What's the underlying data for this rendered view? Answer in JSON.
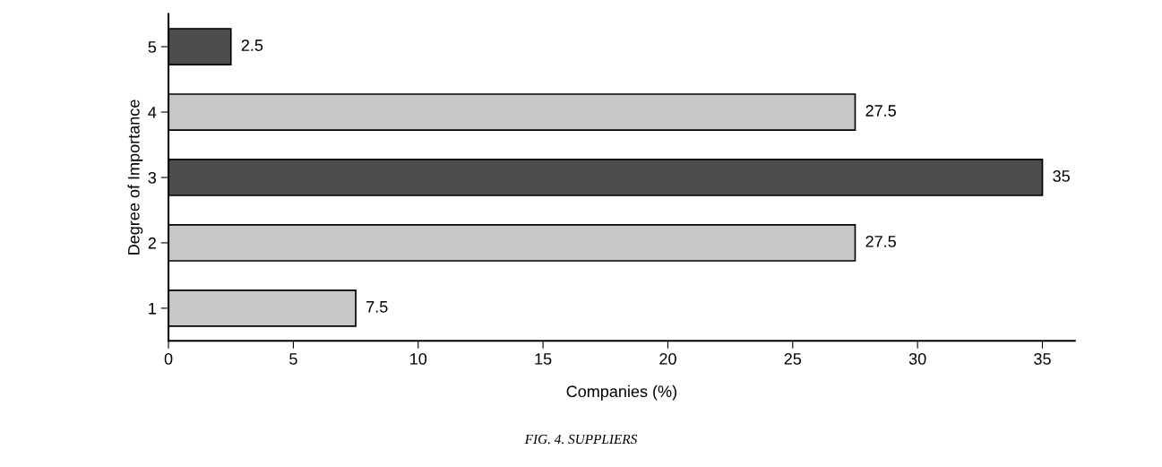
{
  "chart_data": {
    "type": "bar",
    "orientation": "horizontal",
    "categories": [
      "5",
      "4",
      "3",
      "2",
      "1"
    ],
    "values": [
      2.5,
      27.5,
      35,
      27.5,
      7.5
    ],
    "colors": [
      "#4d4d4d",
      "#c8c8c8",
      "#4d4d4d",
      "#c8c8c8",
      "#c8c8c8"
    ],
    "xlim": [
      0,
      36.3
    ],
    "xticks": [
      0,
      5,
      10,
      15,
      20,
      25,
      30,
      35
    ],
    "xlabel": "Companies (%)",
    "ylabel": "Degree of Importance",
    "data_labels": true,
    "grid": false,
    "legend": false,
    "annotations": [
      "FIG. 4. SUPPLIERS"
    ]
  }
}
